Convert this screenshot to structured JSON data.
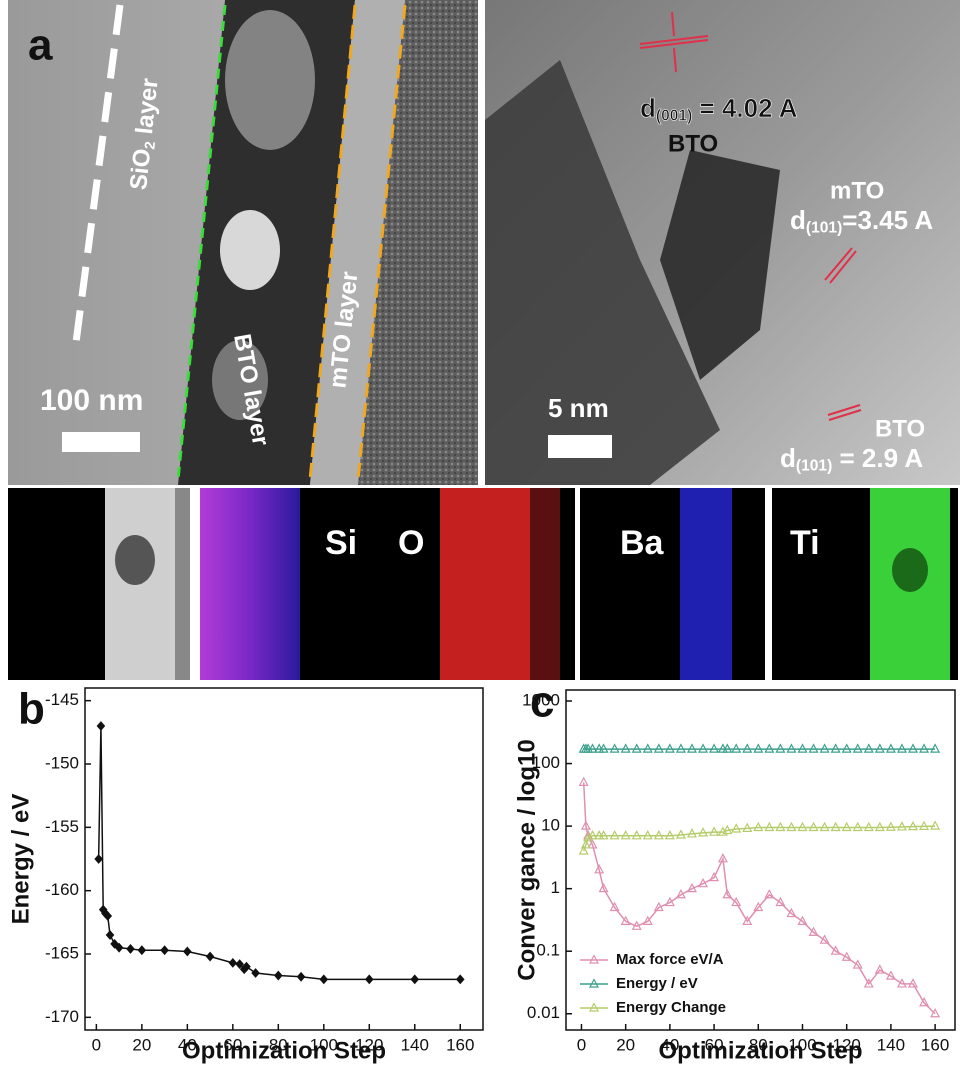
{
  "panels": {
    "a": {
      "letter": "a",
      "scale_left": "100 nm",
      "sio2": {
        "main": "SiO",
        "sub": "2",
        "rest": " layer"
      },
      "bto_layer": "BTO layer",
      "mto_layer": "mTO layer",
      "scale_right": "5 nm",
      "d1": {
        "main": "d",
        "sub": "(001)",
        "rest": " = 4.02 A"
      },
      "d1_phase": "BTO",
      "d2_phase": "mTO",
      "d2": {
        "main": "d",
        "sub": "(101)",
        "rest": "=3.45 A"
      },
      "d3_phase": "BTO",
      "d3": {
        "main": "d",
        "sub": "(101)",
        "rest": " = 2.9 A"
      }
    },
    "eds": [
      "Si",
      "O",
      "Ba",
      "Ti"
    ]
  },
  "chart_data": [
    {
      "type": "line",
      "label": "b",
      "x_label": "Optimization Step",
      "y_label": "Energy / eV",
      "marker": "diamond",
      "xlim": [
        -5,
        170
      ],
      "ylim": [
        -171,
        -144
      ],
      "xticks": [
        0,
        20,
        40,
        60,
        80,
        100,
        120,
        140,
        160
      ],
      "yticks": [
        -145,
        -150,
        -155,
        -160,
        -165,
        -170
      ],
      "series": [
        {
          "color": "#111111",
          "x": [
            1,
            2,
            3,
            4,
            5,
            6,
            8,
            10,
            15,
            20,
            30,
            40,
            50,
            60,
            63,
            65,
            66,
            70,
            80,
            90,
            100,
            120,
            140,
            160
          ],
          "values": [
            -157.5,
            -147,
            -161.5,
            -161.8,
            -162,
            -163.5,
            -164.2,
            -164.5,
            -164.6,
            -164.7,
            -164.7,
            -164.8,
            -165.2,
            -165.7,
            -165.8,
            -166.2,
            -166,
            -166.5,
            -166.7,
            -166.8,
            -167,
            -167,
            -167,
            -167
          ]
        }
      ]
    },
    {
      "type": "line",
      "label": "c",
      "x_label": "Optimization Step",
      "y_label": "Conver gance / log10",
      "marker": "triangle",
      "log_y": true,
      "legend": "lower left",
      "xlim": [
        -7,
        169
      ],
      "ylim": [
        0.0055,
        1500
      ],
      "xticks": [
        0,
        20,
        40,
        60,
        80,
        100,
        120,
        140,
        160
      ],
      "yticks": [
        0.01,
        0.1,
        1,
        10,
        100,
        1000
      ],
      "series": [
        {
          "name": "Max force eV/A",
          "color": "#e08fb0",
          "x": [
            1,
            2,
            3,
            5,
            8,
            10,
            15,
            20,
            25,
            30,
            35,
            40,
            45,
            50,
            55,
            60,
            64,
            66,
            70,
            75,
            80,
            85,
            90,
            95,
            100,
            105,
            110,
            115,
            120,
            125,
            130,
            135,
            140,
            145,
            150,
            155,
            160
          ],
          "values": [
            50,
            10,
            7,
            5,
            2,
            1,
            0.5,
            0.3,
            0.25,
            0.3,
            0.5,
            0.6,
            0.8,
            1,
            1.2,
            1.5,
            3,
            0.8,
            0.6,
            0.3,
            0.5,
            0.8,
            0.6,
            0.4,
            0.3,
            0.2,
            0.15,
            0.1,
            0.08,
            0.06,
            0.03,
            0.05,
            0.04,
            0.03,
            0.03,
            0.015,
            0.01
          ]
        },
        {
          "name": "Energy / eV",
          "color": "#3a9f8c",
          "x": [
            1,
            2,
            3,
            5,
            8,
            10,
            15,
            20,
            25,
            30,
            35,
            40,
            45,
            50,
            55,
            60,
            64,
            66,
            70,
            75,
            80,
            85,
            90,
            95,
            100,
            105,
            110,
            115,
            120,
            125,
            130,
            135,
            140,
            145,
            150,
            155,
            160
          ],
          "values": [
            170,
            170,
            170,
            170,
            170,
            170,
            170,
            170,
            170,
            170,
            170,
            170,
            170,
            170,
            170,
            170,
            170,
            170,
            170,
            170,
            170,
            170,
            170,
            170,
            170,
            170,
            170,
            170,
            170,
            170,
            170,
            170,
            170,
            170,
            170,
            170,
            170
          ]
        },
        {
          "name": "Energy Change",
          "color": "#b5cc6a",
          "x": [
            1,
            2,
            3,
            5,
            8,
            10,
            15,
            20,
            25,
            30,
            35,
            40,
            45,
            50,
            55,
            60,
            64,
            66,
            70,
            75,
            80,
            85,
            90,
            95,
            100,
            105,
            110,
            115,
            120,
            125,
            130,
            135,
            140,
            145,
            150,
            155,
            160
          ],
          "values": [
            4,
            5,
            6.5,
            7,
            7,
            7,
            7,
            7,
            7,
            7,
            7,
            7,
            7.2,
            7.5,
            7.8,
            8,
            8,
            8.5,
            9,
            9.2,
            9.5,
            9.5,
            9.5,
            9.5,
            9.5,
            9.5,
            9.5,
            9.5,
            9.5,
            9.5,
            9.5,
            9.5,
            9.6,
            9.7,
            9.8,
            9.9,
            10
          ]
        }
      ]
    }
  ]
}
